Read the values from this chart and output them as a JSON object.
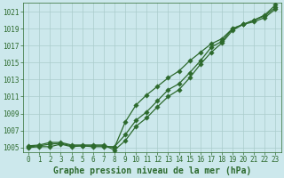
{
  "title": "Graphe pression niveau de la mer (hPa)",
  "x": [
    0,
    1,
    2,
    3,
    4,
    5,
    6,
    7,
    8,
    9,
    10,
    11,
    12,
    13,
    14,
    15,
    16,
    17,
    18,
    19,
    20,
    21,
    22,
    23
  ],
  "line1": [
    1005.0,
    1005.1,
    1005.1,
    1005.4,
    1005.1,
    1005.2,
    1005.1,
    1005.1,
    1005.1,
    1006.5,
    1008.2,
    1009.2,
    1010.5,
    1011.8,
    1012.5,
    1013.8,
    1015.2,
    1016.8,
    1017.5,
    1019.0,
    1019.5,
    1020.0,
    1020.5,
    1021.5
  ],
  "line2": [
    1005.2,
    1005.3,
    1005.6,
    1005.6,
    1005.3,
    1005.3,
    1005.3,
    1005.3,
    1004.7,
    1005.8,
    1007.5,
    1008.5,
    1009.8,
    1011.0,
    1011.8,
    1013.2,
    1014.8,
    1016.2,
    1017.3,
    1018.8,
    1019.5,
    1020.0,
    1020.6,
    1021.8
  ],
  "line3": [
    1005.1,
    1005.2,
    1005.4,
    1005.5,
    1005.2,
    1005.2,
    1005.2,
    1005.2,
    1005.0,
    1008.0,
    1010.0,
    1011.2,
    1012.2,
    1013.2,
    1014.0,
    1015.2,
    1016.2,
    1017.2,
    1017.8,
    1019.0,
    1019.5,
    1019.8,
    1020.3,
    1021.3
  ],
  "ylim": [
    1004.5,
    1022.0
  ],
  "yticks": [
    1005,
    1007,
    1009,
    1011,
    1013,
    1015,
    1017,
    1019,
    1021
  ],
  "xlim": [
    -0.5,
    23.5
  ],
  "bg_color": "#cce8ec",
  "line_color": "#2d6a2d",
  "grid_color": "#aacccc",
  "title_color": "#2d6a2d",
  "title_fontsize": 7.0,
  "tick_fontsize": 5.5,
  "marker_size": 2.8,
  "linewidth": 0.9
}
